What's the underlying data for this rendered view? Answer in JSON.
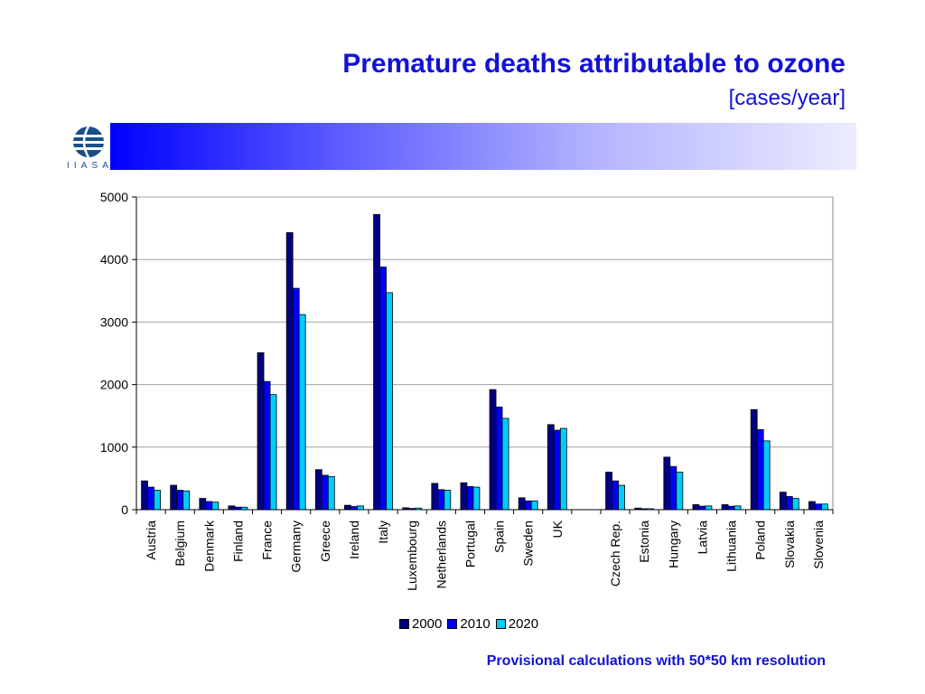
{
  "header": {
    "title": "Premature deaths attributable to ozone",
    "subtitle": "[cases/year]"
  },
  "logo": {
    "icon": "iiasa-globe-logo",
    "letters": [
      "I",
      "I",
      "A",
      "S",
      "A"
    ]
  },
  "footnote": "Provisional calculations with 50*50 km resolution",
  "colors": {
    "accent": "#1212d6",
    "s2000": "#000080",
    "s2010": "#0000ff",
    "s2020": "#00ccff"
  },
  "chart_data": {
    "type": "bar",
    "categories": [
      "Austria",
      "Belgium",
      "Denmark",
      "Finland",
      "France",
      "Germany",
      "Greece",
      "Ireland",
      "Italy",
      "Luxembourg",
      "Netherlands",
      "Portugal",
      "Spain",
      "Sweden",
      "UK",
      "",
      "Czech Rep.",
      "Estonia",
      "Hungary",
      "Latvia",
      "Lithuania",
      "Poland",
      "Slovakia",
      "Slovenia"
    ],
    "series": [
      {
        "name": "2000",
        "color": "#000080",
        "values": [
          460,
          390,
          180,
          60,
          2510,
          4430,
          640,
          70,
          4720,
          30,
          420,
          430,
          1920,
          190,
          1360,
          null,
          600,
          25,
          840,
          80,
          80,
          1600,
          280,
          130
        ]
      },
      {
        "name": "2010",
        "color": "#0000ff",
        "values": [
          360,
          310,
          130,
          40,
          2050,
          3540,
          550,
          50,
          3880,
          20,
          320,
          370,
          1640,
          140,
          1270,
          null,
          460,
          15,
          690,
          55,
          55,
          1280,
          210,
          90
        ]
      },
      {
        "name": "2020",
        "color": "#00ccff",
        "values": [
          310,
          300,
          120,
          40,
          1840,
          3120,
          530,
          60,
          3470,
          25,
          310,
          360,
          1460,
          140,
          1300,
          null,
          390,
          15,
          600,
          60,
          60,
          1100,
          180,
          90
        ]
      }
    ],
    "yticks": [
      "0",
      "1000",
      "2000",
      "3000",
      "4000",
      "5000"
    ],
    "ylim": [
      0,
      5000
    ],
    "grid": true,
    "legend_position": "bottom"
  }
}
